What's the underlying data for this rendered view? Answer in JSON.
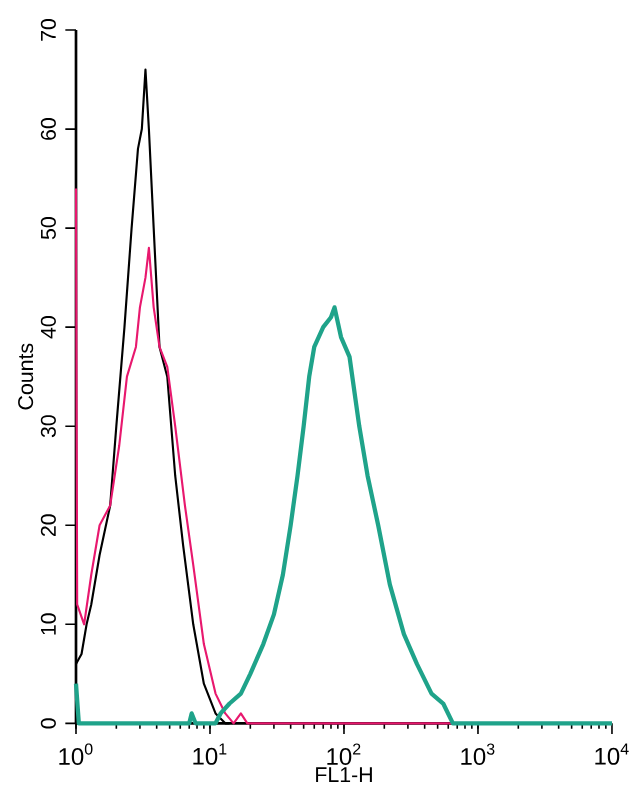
{
  "chart_data": {
    "type": "line",
    "xlabel": "FL1-H",
    "ylabel": "Counts",
    "log": "x",
    "marker": "none",
    "line_style": "solid",
    "xlim": [
      1,
      10000
    ],
    "ylim": [
      0,
      70
    ],
    "xticks": [
      {
        "value": 1,
        "label": "10$^{0}$"
      },
      {
        "value": 10,
        "label": "10$^{1}$"
      },
      {
        "value": 100,
        "label": "10$^{2}$"
      },
      {
        "value": 1000,
        "label": "10$^{3}$"
      },
      {
        "value": 10000,
        "label": "10$^{4}$"
      }
    ],
    "yticks": [
      0,
      10,
      20,
      30,
      40,
      50,
      60,
      70
    ],
    "series": [
      {
        "color": "#000000",
        "x": [
          1,
          1.1,
          1.2,
          1.3,
          1.5,
          1.8,
          2.0,
          2.3,
          2.6,
          2.9,
          3.1,
          3.3,
          3.5,
          3.8,
          4.2,
          4.8,
          5.5,
          6.3,
          7.5,
          9,
          11,
          13,
          14
        ],
        "values": [
          6,
          7,
          10,
          12,
          17,
          22,
          30,
          40,
          50,
          58,
          60,
          66,
          60,
          50,
          38,
          35,
          25,
          18,
          10,
          4,
          1,
          0,
          0
        ]
      },
      {
        "color": "#e8186e",
        "x": [
          1,
          1.02,
          1.15,
          1.3,
          1.5,
          1.8,
          2.1,
          2.4,
          2.8,
          3.0,
          3.3,
          3.5,
          3.8,
          4.2,
          4.8,
          5.5,
          6.5,
          7.5,
          9,
          11,
          13,
          15,
          17,
          19,
          10000
        ],
        "values": [
          54,
          12,
          10,
          15,
          20,
          22,
          28,
          35,
          38,
          42,
          45,
          48,
          42,
          38,
          36,
          30,
          22,
          16,
          8,
          3,
          1,
          0,
          1,
          0,
          0
        ]
      },
      {
        "color": "#1fa38a",
        "x": [
          1,
          1.05,
          7,
          7.3,
          7.8,
          11,
          12,
          14,
          17,
          20,
          25,
          30,
          35,
          40,
          45,
          50,
          55,
          60,
          70,
          80,
          85,
          95,
          110,
          130,
          150,
          180,
          220,
          280,
          350,
          450,
          550,
          650,
          10000
        ],
        "values": [
          4,
          0,
          0,
          1,
          0,
          0,
          1,
          2,
          3,
          5,
          8,
          11,
          15,
          20,
          25,
          30,
          35,
          38,
          40,
          41,
          42,
          39,
          37,
          30,
          25,
          20,
          14,
          9,
          6,
          3,
          2,
          0,
          0
        ]
      }
    ]
  }
}
